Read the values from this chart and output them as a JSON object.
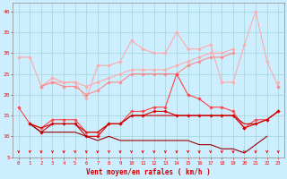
{
  "x": [
    0,
    1,
    2,
    3,
    4,
    5,
    6,
    7,
    8,
    9,
    10,
    11,
    12,
    13,
    14,
    15,
    16,
    17,
    18,
    19,
    20,
    21,
    22,
    23
  ],
  "series": [
    {
      "name": "max_gust",
      "color": "#ffaaaa",
      "linewidth": 0.8,
      "marker": "D",
      "markersize": 1.8,
      "values": [
        29,
        29,
        22,
        24,
        23,
        23,
        19,
        27,
        27,
        28,
        33,
        31,
        30,
        30,
        35,
        31,
        31,
        32,
        23,
        23,
        32,
        40,
        28,
        22
      ]
    },
    {
      "name": "avg_upper",
      "color": "#ffaaaa",
      "linewidth": 0.8,
      "marker": "D",
      "markersize": 1.8,
      "values": [
        null,
        null,
        22,
        23,
        23,
        23,
        22,
        23,
        24,
        25,
        26,
        26,
        26,
        26,
        27,
        28,
        29,
        30,
        30,
        31,
        null,
        null,
        null,
        23
      ]
    },
    {
      "name": "avg_mid",
      "color": "#ff8888",
      "linewidth": 0.8,
      "marker": "D",
      "markersize": 1.8,
      "values": [
        null,
        null,
        22,
        23,
        22,
        22,
        20,
        21,
        23,
        23,
        25,
        25,
        25,
        25,
        25,
        27,
        28,
        29,
        29,
        30,
        null,
        null,
        null,
        22
      ]
    },
    {
      "name": "wind_medium",
      "color": "#ff4444",
      "linewidth": 0.8,
      "marker": "D",
      "markersize": 1.8,
      "values": [
        17,
        13,
        12,
        14,
        14,
        14,
        11,
        11,
        13,
        13,
        16,
        16,
        17,
        17,
        25,
        20,
        19,
        17,
        17,
        16,
        12,
        14,
        14,
        16
      ]
    },
    {
      "name": "wind_avg",
      "color": "#dd0000",
      "linewidth": 0.8,
      "marker": "D",
      "markersize": 1.8,
      "values": [
        null,
        13,
        11,
        13,
        13,
        13,
        10,
        10,
        13,
        13,
        15,
        15,
        16,
        16,
        15,
        15,
        15,
        15,
        15,
        15,
        12,
        13,
        14,
        16
      ]
    },
    {
      "name": "flat_line",
      "color": "#cc0000",
      "linewidth": 0.8,
      "marker": null,
      "markersize": 0,
      "values": [
        null,
        13,
        12,
        13,
        13,
        13,
        11,
        11,
        13,
        13,
        15,
        15,
        15,
        15,
        15,
        15,
        15,
        15,
        15,
        15,
        13,
        13,
        14,
        16
      ]
    },
    {
      "name": "min_line",
      "color": "#990000",
      "linewidth": 0.8,
      "marker": null,
      "markersize": 0,
      "values": [
        null,
        13,
        11,
        11,
        11,
        11,
        10,
        9,
        10,
        9,
        9,
        9,
        9,
        9,
        9,
        9,
        8,
        8,
        7,
        7,
        6,
        8,
        10,
        null
      ]
    }
  ],
  "wind_arrows_x": [
    0,
    1,
    2,
    3,
    4,
    5,
    6,
    7,
    8,
    9,
    10,
    11,
    12,
    13,
    14,
    15,
    16,
    17,
    18,
    19,
    20,
    21,
    22,
    23
  ],
  "ylim": [
    5,
    42
  ],
  "yticks": [
    5,
    10,
    15,
    20,
    25,
    30,
    35,
    40
  ],
  "xticks": [
    0,
    1,
    2,
    3,
    4,
    5,
    6,
    7,
    8,
    9,
    10,
    11,
    12,
    13,
    14,
    15,
    16,
    17,
    18,
    19,
    20,
    21,
    22,
    23
  ],
  "xlabel": "Vent moyen/en rafales ( km/h )",
  "background_color": "#cceeff",
  "grid_color": "#99cccc",
  "tick_color": "#ff0000",
  "xlabel_color": "#cc0000",
  "arrow_color": "#ff0000",
  "spine_color": "#888888"
}
